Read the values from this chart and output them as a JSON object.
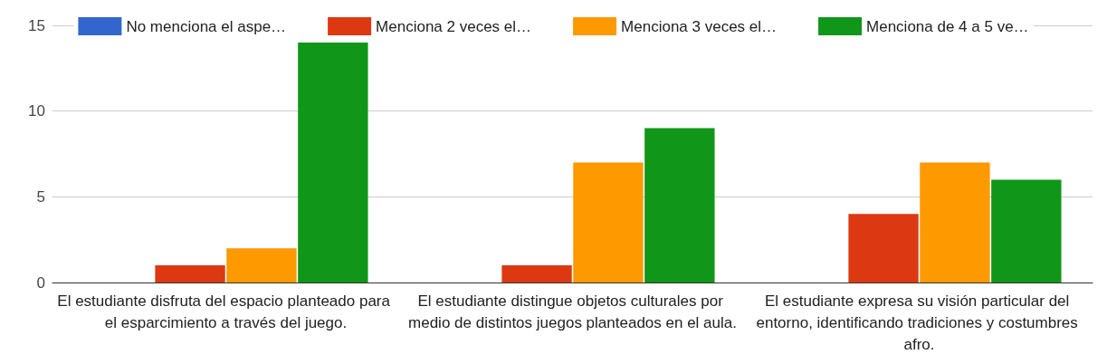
{
  "chart_data": {
    "type": "bar",
    "categories": [
      "El estudiante disfruta del espacio planteado para el esparcimiento a través del juego.",
      "El estudiante distingue objetos culturales por medio de distintos juegos planteados en el aula.",
      "El estudiante expresa su visión particular del entorno, identificando tradiciones y costumbres afro."
    ],
    "series": [
      {
        "name": "No menciona el aspe…",
        "color": "#3366cc",
        "values": [
          0,
          0,
          0
        ]
      },
      {
        "name": "Menciona 2 veces el…",
        "color": "#dc3912",
        "values": [
          1,
          1,
          4
        ]
      },
      {
        "name": "Menciona 3 veces el…",
        "color": "#ff9900",
        "values": [
          2,
          7,
          7
        ]
      },
      {
        "name": "Menciona de 4 a 5 ve…",
        "color": "#109618",
        "values": [
          14,
          9,
          6
        ]
      }
    ],
    "ylim": [
      0,
      15
    ],
    "yticks": [
      0,
      5,
      10,
      15
    ],
    "grid": "y",
    "legend": "top"
  }
}
